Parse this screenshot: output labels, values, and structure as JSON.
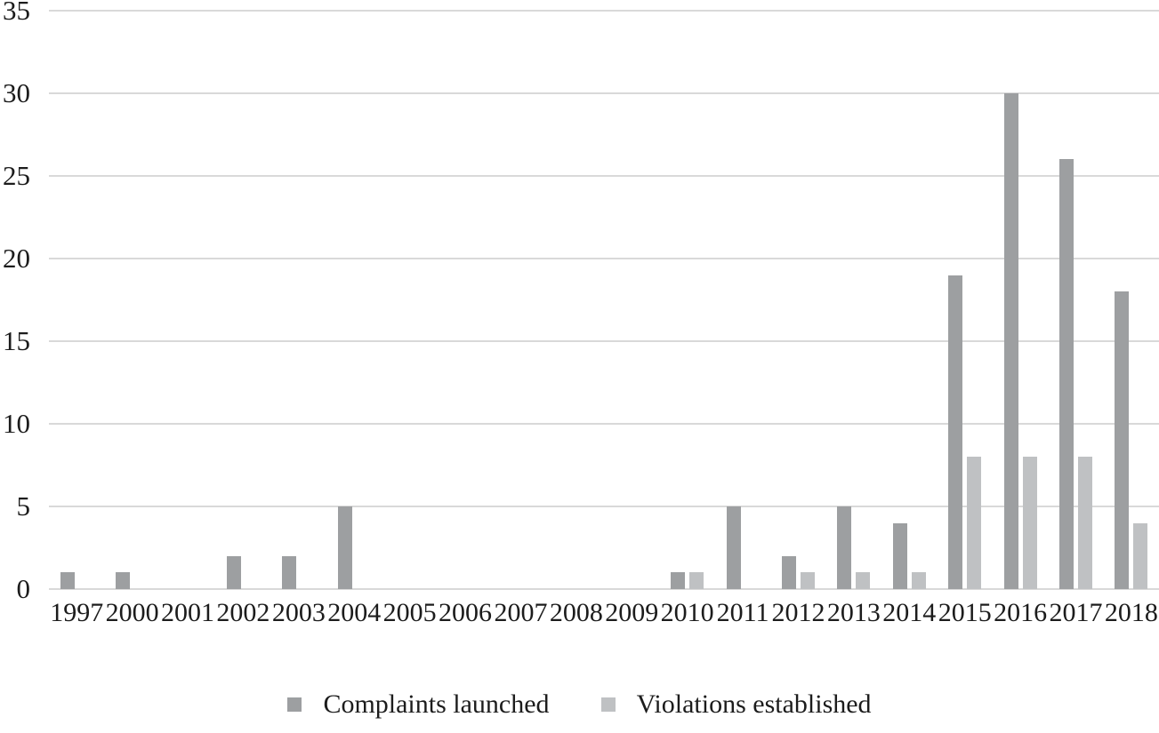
{
  "chart_data": {
    "type": "bar",
    "title": "",
    "xlabel": "",
    "ylabel": "",
    "ylim": [
      0,
      35
    ],
    "ytick_step": 5,
    "yticks": [
      0,
      5,
      10,
      15,
      20,
      25,
      30,
      35
    ],
    "grid": "horizontal",
    "legend_position": "bottom-center",
    "categories": [
      "1997",
      "2000",
      "2001",
      "2002",
      "2003",
      "2004",
      "2005",
      "2006",
      "2007",
      "2008",
      "2009",
      "2010",
      "2011",
      "2012",
      "2013",
      "2014",
      "2015",
      "2016",
      "2017",
      "2018"
    ],
    "series": [
      {
        "name": "Complaints launched",
        "color": "#9d9fa1",
        "values": [
          1,
          1,
          0,
          2,
          2,
          5,
          0,
          0,
          0,
          0,
          0,
          1,
          5,
          2,
          5,
          4,
          19,
          30,
          26,
          18
        ]
      },
      {
        "name": "Violations established",
        "color": "#bfc1c3",
        "values": [
          0,
          0,
          0,
          0,
          0,
          0,
          0,
          0,
          0,
          0,
          0,
          1,
          0,
          1,
          1,
          1,
          8,
          8,
          8,
          4
        ]
      }
    ],
    "colors": {
      "gridline": "#d9d9d9",
      "text": "#1c1c1c",
      "background": "#ffffff"
    }
  }
}
